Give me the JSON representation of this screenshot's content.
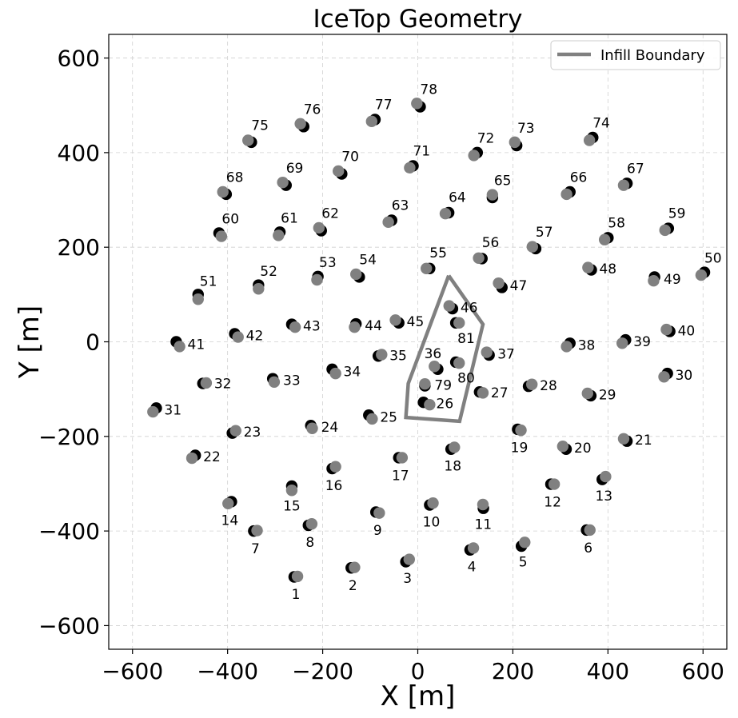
{
  "chart_data": {
    "type": "scatter",
    "title": "IceTop Geometry",
    "xlabel": "X [m]",
    "ylabel": "Y [m]",
    "xlim": [
      -650,
      650
    ],
    "ylim": [
      -650,
      650
    ],
    "xticks": [
      -600,
      -400,
      -200,
      0,
      200,
      400,
      600
    ],
    "yticks": [
      -600,
      -400,
      -200,
      0,
      200,
      400,
      600
    ],
    "xtick_labels": [
      "−600",
      "−400",
      "−200",
      "0",
      "200",
      "400",
      "600"
    ],
    "ytick_labels": [
      "−600",
      "−400",
      "−200",
      "0",
      "200",
      "400",
      "600"
    ],
    "grid": true,
    "legend_position": "top-right",
    "colors": {
      "tank_a": "#000000",
      "tank_b": "#808080",
      "boundary": "#808080"
    },
    "series": [
      {
        "name": "Infill Boundary",
        "type": "line",
        "points": [
          [
            65,
            140
          ],
          [
            137,
            37
          ],
          [
            88,
            -168
          ],
          [
            -25,
            -160
          ],
          [
            -20,
            -88
          ],
          [
            65,
            140
          ]
        ]
      }
    ],
    "stations": [
      {
        "id": "1",
        "a": [
          -260,
          -497
        ],
        "b": [
          -253,
          -496
        ],
        "pos": "below"
      },
      {
        "id": "2",
        "a": [
          -140,
          -478
        ],
        "b": [
          -133,
          -477
        ],
        "pos": "below"
      },
      {
        "id": "3",
        "a": [
          -25,
          -465
        ],
        "b": [
          -18,
          -460
        ],
        "pos": "below"
      },
      {
        "id": "4",
        "a": [
          110,
          -440
        ],
        "b": [
          117,
          -436
        ],
        "pos": "below"
      },
      {
        "id": "5",
        "a": [
          218,
          -432
        ],
        "b": [
          225,
          -424
        ],
        "pos": "below"
      },
      {
        "id": "6",
        "a": [
          355,
          -398
        ],
        "b": [
          362,
          -398
        ],
        "pos": "below"
      },
      {
        "id": "7",
        "a": [
          -345,
          -400
        ],
        "b": [
          -338,
          -399
        ],
        "pos": "below"
      },
      {
        "id": "8",
        "a": [
          -230,
          -388
        ],
        "b": [
          -223,
          -385
        ],
        "pos": "below"
      },
      {
        "id": "9",
        "a": [
          -88,
          -360
        ],
        "b": [
          -81,
          -362
        ],
        "pos": "below"
      },
      {
        "id": "10",
        "a": [
          25,
          -345
        ],
        "b": [
          32,
          -341
        ],
        "pos": "below"
      },
      {
        "id": "11",
        "a": [
          138,
          -352
        ],
        "b": [
          137,
          -344
        ],
        "pos": "below"
      },
      {
        "id": "12",
        "a": [
          280,
          -301
        ],
        "b": [
          287,
          -301
        ],
        "pos": "below"
      },
      {
        "id": "13",
        "a": [
          388,
          -291
        ],
        "b": [
          395,
          -285
        ],
        "pos": "below"
      },
      {
        "id": "14",
        "a": [
          -392,
          -338
        ],
        "b": [
          -399,
          -342
        ],
        "pos": "below"
      },
      {
        "id": "15",
        "a": [
          -265,
          -305
        ],
        "b": [
          -265,
          -314
        ],
        "pos": "below"
      },
      {
        "id": "16",
        "a": [
          -180,
          -268
        ],
        "b": [
          -173,
          -264
        ],
        "pos": "below"
      },
      {
        "id": "17",
        "a": [
          -40,
          -245
        ],
        "b": [
          -33,
          -245
        ],
        "pos": "below"
      },
      {
        "id": "18",
        "a": [
          70,
          -227
        ],
        "b": [
          77,
          -223
        ],
        "pos": "below"
      },
      {
        "id": "19",
        "a": [
          210,
          -185
        ],
        "b": [
          217,
          -187
        ],
        "pos": "below"
      },
      {
        "id": "20",
        "a": [
          312,
          -227
        ],
        "b": [
          305,
          -221
        ],
        "pos": "right"
      },
      {
        "id": "21",
        "a": [
          440,
          -210
        ],
        "b": [
          433,
          -205
        ],
        "pos": "right"
      },
      {
        "id": "22",
        "a": [
          -468,
          -240
        ],
        "b": [
          -475,
          -246
        ],
        "pos": "right"
      },
      {
        "id": "23",
        "a": [
          -390,
          -193
        ],
        "b": [
          -383,
          -188
        ],
        "pos": "right"
      },
      {
        "id": "24",
        "a": [
          -225,
          -177
        ],
        "b": [
          -222,
          -183
        ],
        "pos": "right"
      },
      {
        "id": "25",
        "a": [
          -103,
          -155
        ],
        "b": [
          -96,
          -163
        ],
        "pos": "right"
      },
      {
        "id": "26",
        "a": [
          12,
          -128
        ],
        "b": [
          25,
          -133
        ],
        "pos": "right"
      },
      {
        "id": "27",
        "a": [
          130,
          -106
        ],
        "b": [
          137,
          -108
        ],
        "pos": "right"
      },
      {
        "id": "28",
        "a": [
          233,
          -94
        ],
        "b": [
          240,
          -90
        ],
        "pos": "right"
      },
      {
        "id": "29",
        "a": [
          364,
          -114
        ],
        "b": [
          357,
          -109
        ],
        "pos": "right"
      },
      {
        "id": "30",
        "a": [
          525,
          -67
        ],
        "b": [
          518,
          -74
        ],
        "pos": "right"
      },
      {
        "id": "31",
        "a": [
          -550,
          -140
        ],
        "b": [
          -557,
          -148
        ],
        "pos": "right"
      },
      {
        "id": "32",
        "a": [
          -452,
          -88
        ],
        "b": [
          -445,
          -87
        ],
        "pos": "right"
      },
      {
        "id": "33",
        "a": [
          -305,
          -78
        ],
        "b": [
          -302,
          -85
        ],
        "pos": "right"
      },
      {
        "id": "34",
        "a": [
          -180,
          -58
        ],
        "b": [
          -173,
          -67
        ],
        "pos": "right"
      },
      {
        "id": "35",
        "a": [
          -83,
          -30
        ],
        "b": [
          -76,
          -27
        ],
        "pos": "right"
      },
      {
        "id": "36",
        "a": [
          42,
          -58
        ],
        "b": [
          35,
          -52
        ],
        "pos": "above-left"
      },
      {
        "id": "37",
        "a": [
          150,
          -28
        ],
        "b": [
          145,
          -22
        ],
        "pos": "right"
      },
      {
        "id": "38",
        "a": [
          320,
          -3
        ],
        "b": [
          313,
          -10
        ],
        "pos": "right"
      },
      {
        "id": "39",
        "a": [
          437,
          4
        ],
        "b": [
          430,
          -3
        ],
        "pos": "right"
      },
      {
        "id": "40",
        "a": [
          530,
          22
        ],
        "b": [
          523,
          26
        ],
        "pos": "right"
      },
      {
        "id": "41",
        "a": [
          -508,
          0
        ],
        "b": [
          -501,
          -10
        ],
        "pos": "right"
      },
      {
        "id": "42",
        "a": [
          -385,
          17
        ],
        "b": [
          -378,
          10
        ],
        "pos": "right"
      },
      {
        "id": "43",
        "a": [
          -265,
          37
        ],
        "b": [
          -258,
          31
        ],
        "pos": "right"
      },
      {
        "id": "44",
        "a": [
          -130,
          38
        ],
        "b": [
          -133,
          31
        ],
        "pos": "right"
      },
      {
        "id": "45",
        "a": [
          -40,
          40
        ],
        "b": [
          -47,
          46
        ],
        "pos": "right"
      },
      {
        "id": "46",
        "a": [
          73,
          70
        ],
        "b": [
          66,
          76
        ],
        "pos": "right"
      },
      {
        "id": "47",
        "a": [
          177,
          115
        ],
        "b": [
          170,
          124
        ],
        "pos": "right"
      },
      {
        "id": "48",
        "a": [
          365,
          152
        ],
        "b": [
          358,
          157
        ],
        "pos": "right"
      },
      {
        "id": "49",
        "a": [
          498,
          137
        ],
        "b": [
          496,
          129
        ],
        "pos": "right"
      },
      {
        "id": "50",
        "a": [
          603,
          147
        ],
        "b": [
          596,
          141
        ],
        "pos": "above-right"
      },
      {
        "id": "51",
        "a": [
          -462,
          100
        ],
        "b": [
          -462,
          90
        ],
        "pos": "above-right"
      },
      {
        "id": "52",
        "a": [
          -335,
          120
        ],
        "b": [
          -335,
          112
        ],
        "pos": "above-right"
      },
      {
        "id": "53",
        "a": [
          -210,
          138
        ],
        "b": [
          -212,
          131
        ],
        "pos": "above-right"
      },
      {
        "id": "54",
        "a": [
          -123,
          137
        ],
        "b": [
          -130,
          143
        ],
        "pos": "above-right"
      },
      {
        "id": "55",
        "a": [
          25,
          155
        ],
        "b": [
          18,
          155
        ],
        "pos": "above-right"
      },
      {
        "id": "56",
        "a": [
          135,
          176
        ],
        "b": [
          128,
          177
        ],
        "pos": "above-right"
      },
      {
        "id": "57",
        "a": [
          248,
          197
        ],
        "b": [
          241,
          201
        ],
        "pos": "above-right"
      },
      {
        "id": "58",
        "a": [
          400,
          220
        ],
        "b": [
          393,
          216
        ],
        "pos": "above-right"
      },
      {
        "id": "59",
        "a": [
          527,
          240
        ],
        "b": [
          520,
          236
        ],
        "pos": "above-right"
      },
      {
        "id": "60",
        "a": [
          -418,
          230
        ],
        "b": [
          -413,
          223
        ],
        "pos": "above-right"
      },
      {
        "id": "61",
        "a": [
          -290,
          232
        ],
        "b": [
          -293,
          225
        ],
        "pos": "above-right"
      },
      {
        "id": "62",
        "a": [
          -203,
          235
        ],
        "b": [
          -208,
          241
        ],
        "pos": "above-right"
      },
      {
        "id": "63",
        "a": [
          -55,
          257
        ],
        "b": [
          -62,
          253
        ],
        "pos": "above-right"
      },
      {
        "id": "64",
        "a": [
          65,
          273
        ],
        "b": [
          58,
          271
        ],
        "pos": "above-right"
      },
      {
        "id": "65",
        "a": [
          157,
          305
        ],
        "b": [
          157,
          311
        ],
        "pos": "above-right"
      },
      {
        "id": "66",
        "a": [
          320,
          317
        ],
        "b": [
          313,
          312
        ],
        "pos": "above-right"
      },
      {
        "id": "67",
        "a": [
          440,
          335
        ],
        "b": [
          433,
          331
        ],
        "pos": "above-right"
      },
      {
        "id": "68",
        "a": [
          -403,
          312
        ],
        "b": [
          -410,
          317
        ],
        "pos": "above-right"
      },
      {
        "id": "69",
        "a": [
          -277,
          331
        ],
        "b": [
          -284,
          337
        ],
        "pos": "above-right"
      },
      {
        "id": "70",
        "a": [
          -160,
          355
        ],
        "b": [
          -167,
          361
        ],
        "pos": "above-right"
      },
      {
        "id": "71",
        "a": [
          -10,
          372
        ],
        "b": [
          -17,
          368
        ],
        "pos": "above-right"
      },
      {
        "id": "72",
        "a": [
          125,
          400
        ],
        "b": [
          118,
          394
        ],
        "pos": "above-right"
      },
      {
        "id": "73",
        "a": [
          208,
          415
        ],
        "b": [
          204,
          422
        ],
        "pos": "above-right"
      },
      {
        "id": "74",
        "a": [
          368,
          432
        ],
        "b": [
          361,
          426
        ],
        "pos": "above-right"
      },
      {
        "id": "75",
        "a": [
          -350,
          422
        ],
        "b": [
          -357,
          426
        ],
        "pos": "above-right"
      },
      {
        "id": "76",
        "a": [
          -240,
          455
        ],
        "b": [
          -247,
          461
        ],
        "pos": "above-right"
      },
      {
        "id": "77",
        "a": [
          -90,
          470
        ],
        "b": [
          -97,
          466
        ],
        "pos": "above-right"
      },
      {
        "id": "78",
        "a": [
          5,
          497
        ],
        "b": [
          -2,
          504
        ],
        "pos": "above-right"
      },
      {
        "id": "79",
        "a": [
          15,
          -93
        ],
        "b": [
          15,
          -89
        ],
        "pos": "right"
      },
      {
        "id": "80",
        "a": [
          80,
          -43
        ],
        "b": [
          87,
          -45
        ],
        "pos": "below-right"
      },
      {
        "id": "81",
        "a": [
          80,
          40
        ],
        "b": [
          87,
          40
        ],
        "pos": "below-right"
      }
    ]
  }
}
